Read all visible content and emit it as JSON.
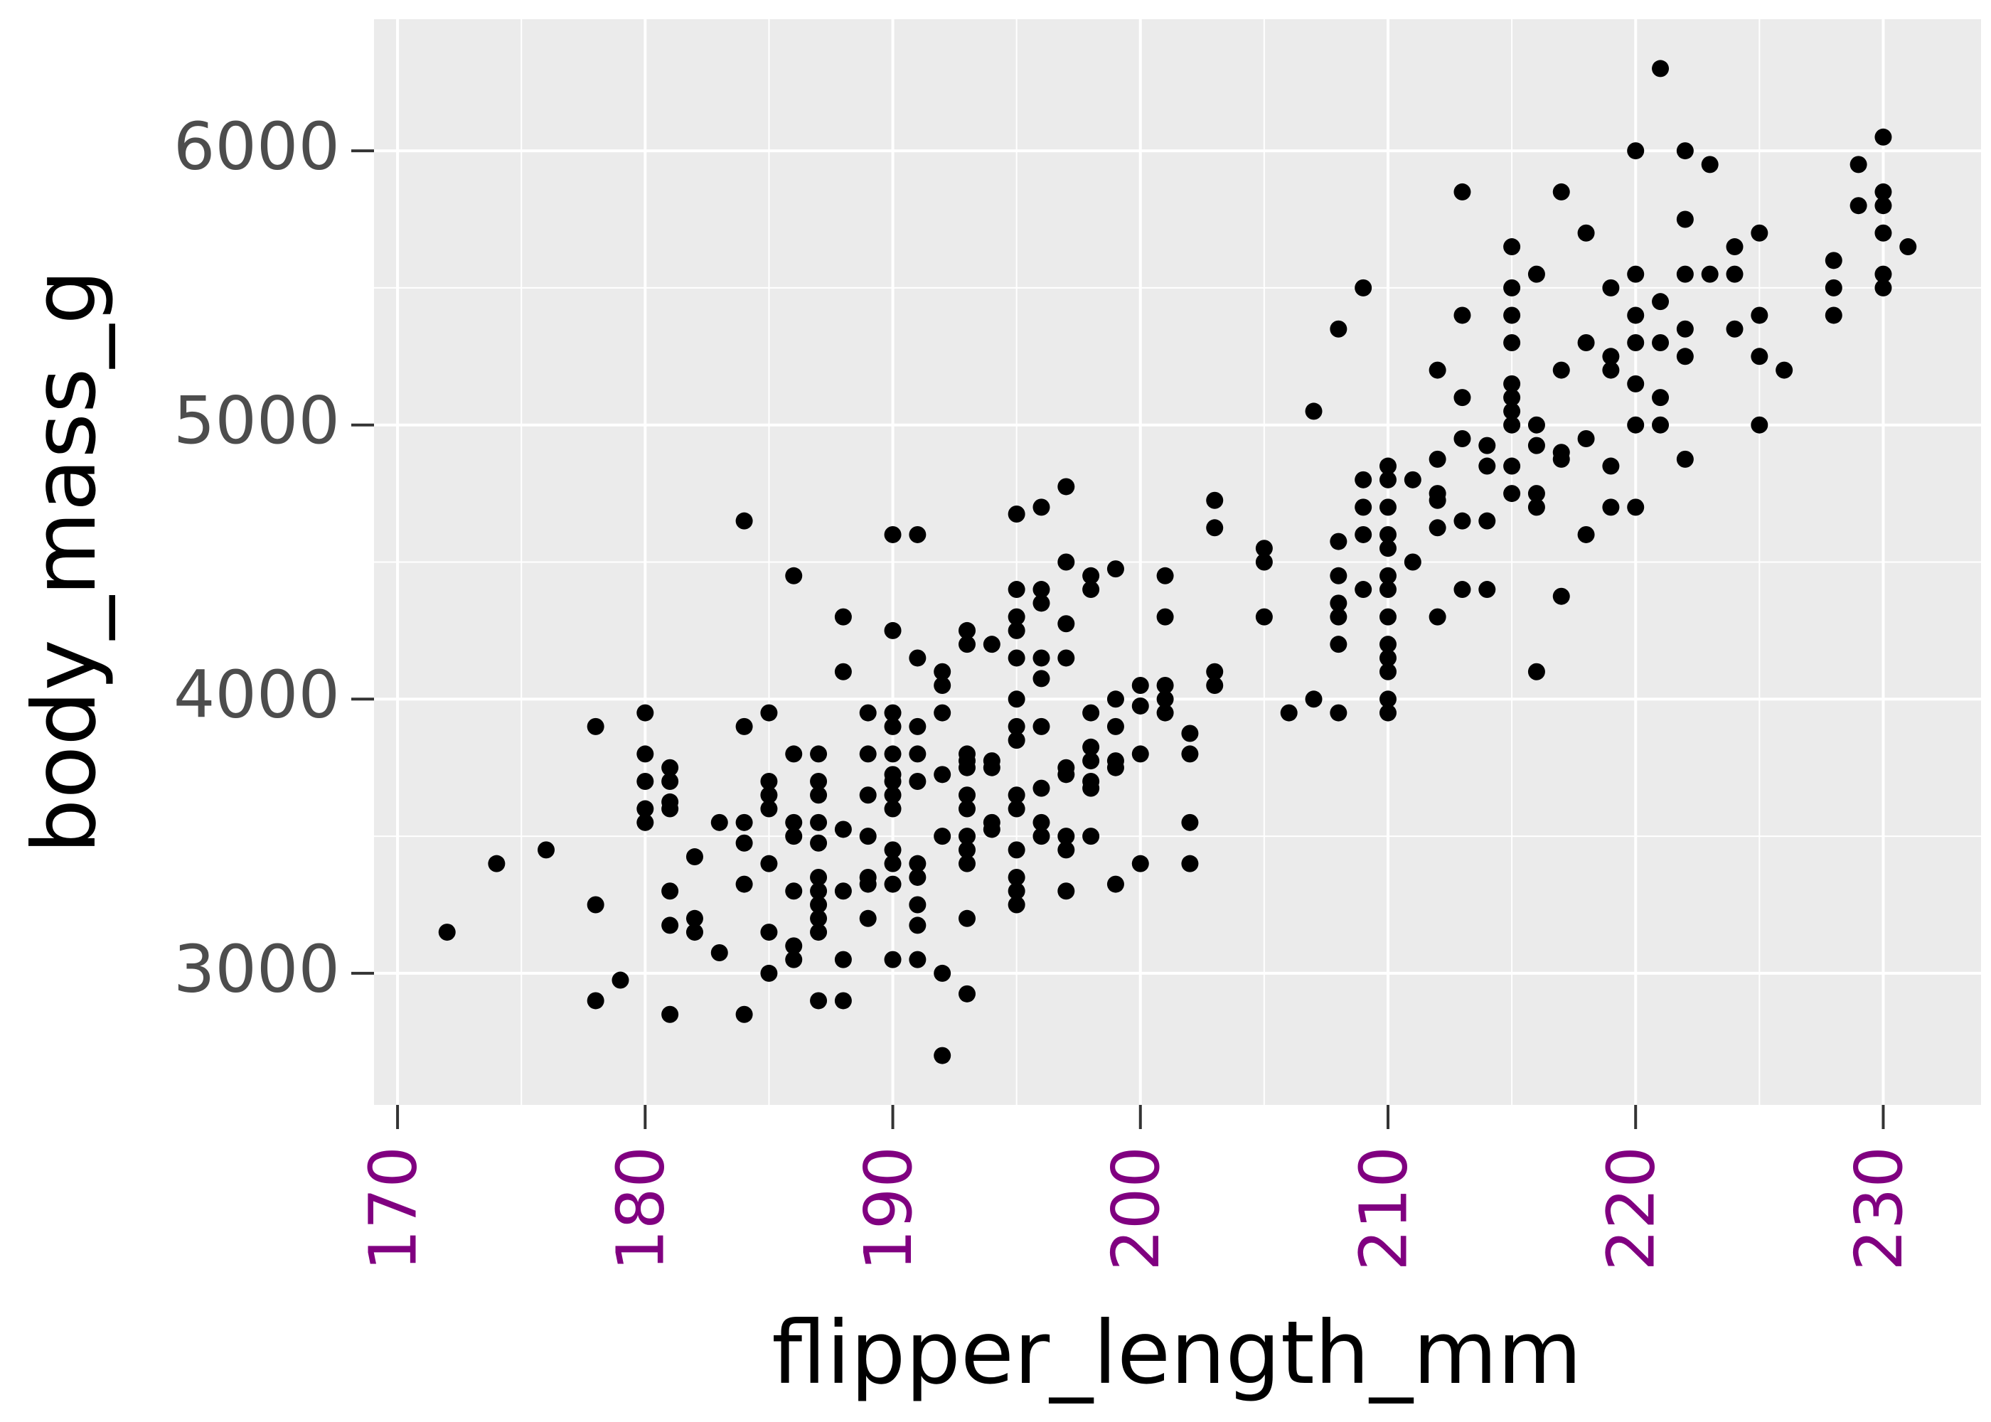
{
  "chart_data": {
    "type": "scatter",
    "xlabel": "flipper_length_mm",
    "ylabel": "body_mass_g",
    "xlim": [
      169.05,
      233.95
    ],
    "ylim": [
      2520,
      6480
    ],
    "xticks": [
      170,
      180,
      190,
      200,
      210,
      220,
      230
    ],
    "yticks": [
      3000,
      4000,
      5000,
      6000
    ],
    "xminor": [
      175,
      185,
      195,
      205,
      215,
      225
    ],
    "yminor": [
      3500,
      4500,
      5500
    ],
    "grid": true,
    "panel_color": "#ebebeb",
    "color": "#000000",
    "xtick_color": "#800080",
    "x": [
      172,
      174,
      176,
      178,
      178,
      178,
      179,
      180,
      180,
      180,
      180,
      180,
      181,
      181,
      181,
      181,
      181,
      181,
      181,
      182,
      182,
      182,
      183,
      183,
      184,
      184,
      184,
      184,
      184,
      184,
      185,
      185,
      185,
      185,
      185,
      185,
      185,
      186,
      186,
      186,
      186,
      186,
      186,
      186,
      187,
      187,
      187,
      187,
      187,
      187,
      187,
      187,
      187,
      187,
      187,
      188,
      188,
      188,
      188,
      188,
      188,
      189,
      189,
      189,
      189,
      189,
      189,
      189,
      190,
      190,
      190,
      190,
      190,
      190,
      190,
      190,
      190,
      190,
      190,
      190,
      190,
      191,
      191,
      191,
      191,
      191,
      191,
      191,
      191,
      191,
      191,
      192,
      192,
      192,
      192,
      192,
      192,
      192,
      193,
      193,
      193,
      193,
      193,
      193,
      193,
      193,
      193,
      193,
      193,
      193,
      194,
      194,
      194,
      194,
      194,
      195,
      195,
      195,
      195,
      195,
      195,
      195,
      195,
      195,
      195,
      195,
      195,
      195,
      195,
      196,
      196,
      196,
      196,
      196,
      196,
      196,
      196,
      196,
      197,
      197,
      197,
      197,
      197,
      197,
      197,
      197,
      197,
      198,
      198,
      198,
      198,
      198,
      198,
      198,
      198,
      199,
      199,
      199,
      199,
      199,
      199,
      200,
      200,
      200,
      200,
      201,
      201,
      201,
      201,
      201,
      202,
      202,
      202,
      202,
      203,
      203,
      203,
      203,
      205,
      205,
      205,
      206,
      207,
      207,
      208,
      208,
      208,
      208,
      208,
      208,
      208,
      209,
      209,
      209,
      209,
      209,
      210,
      210,
      210,
      210,
      210,
      210,
      210,
      210,
      210,
      210,
      210,
      210,
      210,
      211,
      211,
      212,
      212,
      212,
      212,
      212,
      212,
      213,
      213,
      213,
      213,
      213,
      213,
      214,
      214,
      214,
      214,
      215,
      215,
      215,
      215,
      215,
      215,
      215,
      215,
      215,
      215,
      216,
      216,
      216,
      216,
      216,
      216,
      217,
      217,
      217,
      217,
      217,
      218,
      218,
      218,
      218,
      219,
      219,
      219,
      219,
      219,
      220,
      220,
      220,
      220,
      220,
      220,
      220,
      221,
      221,
      221,
      221,
      221,
      222,
      222,
      222,
      222,
      222,
      222,
      223,
      223,
      224,
      224,
      224,
      225,
      225,
      225,
      225,
      226,
      228,
      228,
      228,
      229,
      229,
      230,
      230,
      230,
      230,
      230,
      230,
      231
    ],
    "values": [
      3150,
      3400,
      3450,
      3900,
      3250,
      2900,
      2975,
      3950,
      3800,
      3700,
      3600,
      3550,
      3750,
      3700,
      3625,
      3600,
      3300,
      3175,
      2850,
      3425,
      3200,
      3150,
      3550,
      3075,
      4650,
      3900,
      3550,
      3475,
      3325,
      2850,
      3950,
      3700,
      3650,
      3600,
      3400,
      3150,
      3000,
      4450,
      3800,
      3550,
      3500,
      3300,
      3100,
      3050,
      3800,
      3700,
      3650,
      3550,
      3475,
      3350,
      3300,
      3250,
      3200,
      3150,
      2900,
      4300,
      4100,
      3525,
      3300,
      3050,
      2900,
      3950,
      3800,
      3650,
      3500,
      3350,
      3325,
      3200,
      4600,
      4250,
      3950,
      3900,
      3800,
      3725,
      3700,
      3650,
      3600,
      3450,
      3400,
      3325,
      3050,
      4600,
      4150,
      3900,
      3800,
      3700,
      3400,
      3350,
      3250,
      3175,
      3050,
      4100,
      4050,
      3950,
      3725,
      3500,
      3000,
      2700,
      4250,
      4200,
      3800,
      3775,
      3750,
      3650,
      3600,
      3500,
      3450,
      3400,
      3200,
      2925,
      4200,
      3775,
      3750,
      3550,
      3525,
      4675,
      4400,
      4300,
      4250,
      4150,
      4000,
      3850,
      3900,
      3650,
      3600,
      3450,
      3350,
      3300,
      3250,
      4700,
      4400,
      4350,
      4150,
      4075,
      3900,
      3675,
      3550,
      3500,
      4775,
      4500,
      4275,
      4150,
      3750,
      3725,
      3500,
      3450,
      3300,
      4450,
      4400,
      3950,
      3825,
      3775,
      3700,
      3675,
      3500,
      4475,
      4000,
      3900,
      3775,
      3750,
      3325,
      4050,
      3975,
      3800,
      3400,
      4450,
      4300,
      4050,
      4000,
      3950,
      3875,
      3800,
      3550,
      3400,
      4725,
      4625,
      4100,
      4050,
      4550,
      4500,
      4300,
      3950,
      5050,
      4000,
      5350,
      4575,
      4450,
      4350,
      4300,
      4200,
      3950,
      5500,
      4800,
      4700,
      4600,
      4400,
      4850,
      4800,
      4700,
      4600,
      4550,
      4450,
      4400,
      4300,
      4200,
      4150,
      4100,
      4000,
      3950,
      4800,
      4500,
      5200,
      4875,
      4750,
      4725,
      4625,
      4300,
      5850,
      5400,
      5100,
      4950,
      4650,
      4400,
      4925,
      4850,
      4650,
      4400,
      5650,
      5500,
      5400,
      5300,
      5150,
      5100,
      5050,
      5000,
      4850,
      4750,
      5550,
      5000,
      4925,
      4750,
      4700,
      4100,
      5850,
      5200,
      4900,
      4875,
      4375,
      5700,
      5300,
      4950,
      4600,
      5500,
      5250,
      5200,
      4850,
      4700,
      6000,
      5550,
      5400,
      5300,
      5150,
      5000,
      4700,
      6300,
      5450,
      5300,
      5100,
      5000,
      6000,
      5750,
      5550,
      5350,
      5250,
      4875,
      5950,
      5550,
      5650,
      5550,
      5350,
      5700,
      5400,
      5250,
      5000,
      5200,
      5600,
      5500,
      5400,
      5950,
      5800,
      6050,
      5850,
      5800,
      5700,
      5550,
      5500,
      5650
    ]
  }
}
